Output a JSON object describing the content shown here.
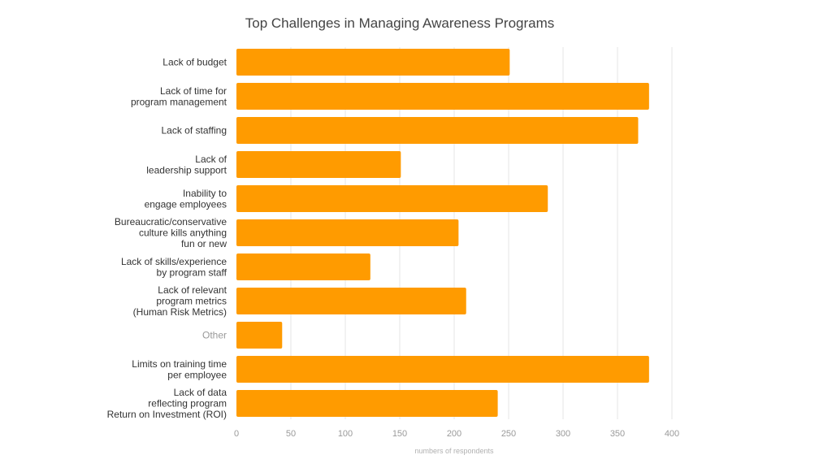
{
  "chart_data": {
    "type": "bar",
    "orientation": "horizontal",
    "title": "Top Challenges in Managing Awareness Programs",
    "xlabel": "numbers of respondents",
    "ylabel": "",
    "xlim": [
      0,
      400
    ],
    "xticks": [
      0,
      50,
      100,
      150,
      200,
      250,
      300,
      350,
      400
    ],
    "grid": true,
    "bar_color": "#FF9B00",
    "categories": [
      "Lack of budget",
      "Lack of time for\nprogram management",
      "Lack of staffing",
      "Lack of\nleadership support",
      "Inability to\nengage employees",
      "Bureaucratic/conservative\nculture kills anything\nfun or new",
      "Lack of skills/experience\nby program staff",
      "Lack of relevant\nprogram metrics\n(Human Risk Metrics)",
      "Other",
      "Limits on training time\nper employee",
      "Lack of data\nreflecting program\nReturn on Investment (ROI)"
    ],
    "values": [
      251,
      379,
      369,
      151,
      286,
      204,
      123,
      211,
      42,
      379,
      240
    ],
    "muted_categories": [
      "Other"
    ]
  }
}
